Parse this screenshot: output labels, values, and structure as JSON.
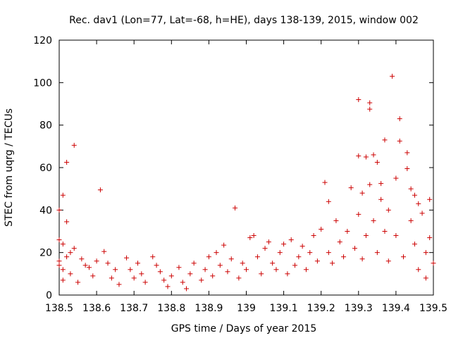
{
  "chart_data": {
    "type": "scatter",
    "title": "Rec. dav1 (Lon=77, Lat=-68, h=HE), days 138-139, 2015, window 002",
    "xlabel": "GPS time / Days of year 2015",
    "ylabel": "STEC from uqrg / TECUs",
    "xlim": [
      138.5,
      139.5
    ],
    "ylim": [
      0,
      120
    ],
    "xticks": [
      138.5,
      138.6,
      138.7,
      138.8,
      138.9,
      139.0,
      139.1,
      139.2,
      139.3,
      139.4,
      139.5
    ],
    "xtick_labels": [
      "138.5",
      "138.6",
      "138.7",
      "138.8",
      "138.9",
      "139",
      "139.1",
      "139.2",
      "139.3",
      "139.4",
      "139.5"
    ],
    "yticks": [
      0,
      20,
      40,
      60,
      80,
      100,
      120
    ],
    "ytick_labels": [
      "0",
      "20",
      "40",
      "60",
      "80",
      "100",
      "120"
    ],
    "marker": "+",
    "color": "#cc0000",
    "series": [
      {
        "name": "STEC",
        "points": [
          [
            138.5,
            40.0
          ],
          [
            138.51,
            47.0
          ],
          [
            138.5,
            26.0
          ],
          [
            138.51,
            24.0
          ],
          [
            138.52,
            62.5
          ],
          [
            138.52,
            34.5
          ],
          [
            138.53,
            20.0
          ],
          [
            138.54,
            70.5
          ],
          [
            138.54,
            22.0
          ],
          [
            138.5,
            16.0
          ],
          [
            138.5,
            14.0
          ],
          [
            138.51,
            12.0
          ],
          [
            138.52,
            18.0
          ],
          [
            138.53,
            10.0
          ],
          [
            138.51,
            7.0
          ],
          [
            138.55,
            6.0
          ],
          [
            138.56,
            17.0
          ],
          [
            138.57,
            14.0
          ],
          [
            138.58,
            13.0
          ],
          [
            138.59,
            9.0
          ],
          [
            138.6,
            16.0
          ],
          [
            138.61,
            49.5
          ],
          [
            138.62,
            20.5
          ],
          [
            138.63,
            15.0
          ],
          [
            138.64,
            8.0
          ],
          [
            138.65,
            12.0
          ],
          [
            138.66,
            5.0
          ],
          [
            138.68,
            17.5
          ],
          [
            138.69,
            12.0
          ],
          [
            138.7,
            8.0
          ],
          [
            138.71,
            15.0
          ],
          [
            138.72,
            10.0
          ],
          [
            138.73,
            6.0
          ],
          [
            138.75,
            18.0
          ],
          [
            138.76,
            14.0
          ],
          [
            138.77,
            11.0
          ],
          [
            138.78,
            7.0
          ],
          [
            138.79,
            4.0
          ],
          [
            138.8,
            9.0
          ],
          [
            138.82,
            13.0
          ],
          [
            138.83,
            6.0
          ],
          [
            138.84,
            3.0
          ],
          [
            138.85,
            10.0
          ],
          [
            138.86,
            15.0
          ],
          [
            138.88,
            7.0
          ],
          [
            138.89,
            12.0
          ],
          [
            138.9,
            18.0
          ],
          [
            138.91,
            9.0
          ],
          [
            138.92,
            20.0
          ],
          [
            138.93,
            14.0
          ],
          [
            138.94,
            23.5
          ],
          [
            138.95,
            11.0
          ],
          [
            138.96,
            17.0
          ],
          [
            138.97,
            41.0
          ],
          [
            138.98,
            8.0
          ],
          [
            138.99,
            15.0
          ],
          [
            139.0,
            12.0
          ],
          [
            139.01,
            27.0
          ],
          [
            139.02,
            28.0
          ],
          [
            139.03,
            18.0
          ],
          [
            139.04,
            10.0
          ],
          [
            139.05,
            22.0
          ],
          [
            139.06,
            25.0
          ],
          [
            139.07,
            15.0
          ],
          [
            139.08,
            12.0
          ],
          [
            139.09,
            20.0
          ],
          [
            139.1,
            24.0
          ],
          [
            139.11,
            10.0
          ],
          [
            139.12,
            26.0
          ],
          [
            139.13,
            14.0
          ],
          [
            139.14,
            18.0
          ],
          [
            139.15,
            23.0
          ],
          [
            139.16,
            12.0
          ],
          [
            139.17,
            20.0
          ],
          [
            139.18,
            28.0
          ],
          [
            139.19,
            16.0
          ],
          [
            139.2,
            31.0
          ],
          [
            139.21,
            53.0
          ],
          [
            139.22,
            44.0
          ],
          [
            139.22,
            20.0
          ],
          [
            139.23,
            15.0
          ],
          [
            139.24,
            35.0
          ],
          [
            139.25,
            25.0
          ],
          [
            139.26,
            18.0
          ],
          [
            139.27,
            30.0
          ],
          [
            139.28,
            50.5
          ],
          [
            139.29,
            22.0
          ],
          [
            139.3,
            92.0
          ],
          [
            139.3,
            65.5
          ],
          [
            139.3,
            38.0
          ],
          [
            139.31,
            48.0
          ],
          [
            139.31,
            17.0
          ],
          [
            139.32,
            65.0
          ],
          [
            139.32,
            28.0
          ],
          [
            139.33,
            90.5
          ],
          [
            139.33,
            87.5
          ],
          [
            139.33,
            52.0
          ],
          [
            139.34,
            66.0
          ],
          [
            139.34,
            35.0
          ],
          [
            139.35,
            62.5
          ],
          [
            139.35,
            20.0
          ],
          [
            139.36,
            52.5
          ],
          [
            139.36,
            45.0
          ],
          [
            139.37,
            73.0
          ],
          [
            139.37,
            30.0
          ],
          [
            139.38,
            40.0
          ],
          [
            139.38,
            16.0
          ],
          [
            139.39,
            103.0
          ],
          [
            139.4,
            55.0
          ],
          [
            139.4,
            28.0
          ],
          [
            139.41,
            83.0
          ],
          [
            139.41,
            72.5
          ],
          [
            139.42,
            18.0
          ],
          [
            139.43,
            67.0
          ],
          [
            139.43,
            59.5
          ],
          [
            139.44,
            50.0
          ],
          [
            139.44,
            35.0
          ],
          [
            139.45,
            47.0
          ],
          [
            139.45,
            24.0
          ],
          [
            139.46,
            43.0
          ],
          [
            139.46,
            12.0
          ],
          [
            139.47,
            38.5
          ],
          [
            139.48,
            20.0
          ],
          [
            139.48,
            8.0
          ],
          [
            139.49,
            45.0
          ],
          [
            139.49,
            27.0
          ],
          [
            139.5,
            15.0
          ]
        ]
      }
    ]
  }
}
